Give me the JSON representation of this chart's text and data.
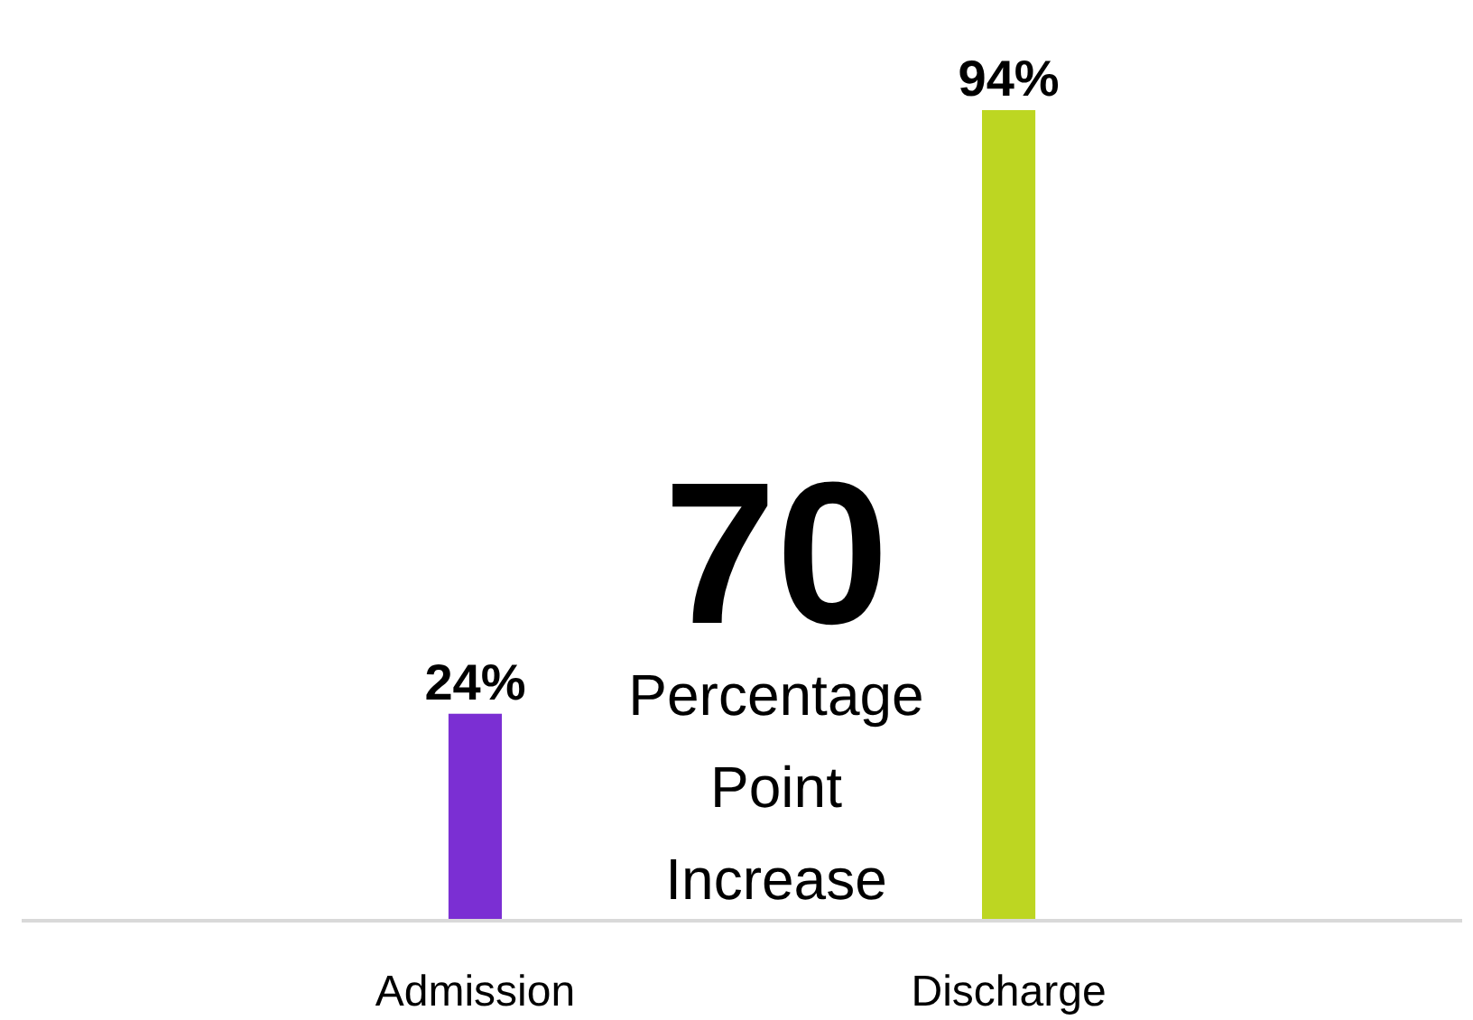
{
  "chart_data": {
    "type": "bar",
    "categories": [
      "Admission",
      "Discharge"
    ],
    "values": [
      24,
      94
    ],
    "colors": [
      "#7b2fd3",
      "#bdd622"
    ],
    "value_labels": [
      "24%",
      "94%"
    ],
    "annotations": [
      "70",
      "Percentage Point Increase"
    ]
  }
}
